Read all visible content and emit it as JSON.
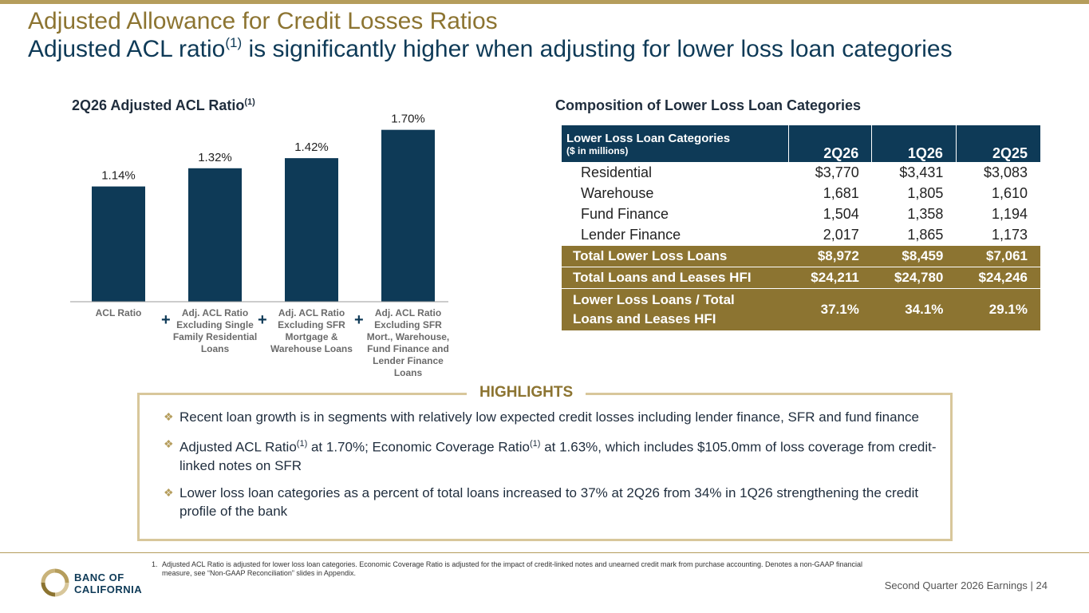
{
  "header": {
    "title": "Adjusted Allowance for Credit Losses Ratios",
    "subtitle_pre": "Adjusted ACL ratio",
    "subtitle_sup": "(1)",
    "subtitle_post": " is significantly higher when adjusting for lower loss loan categories"
  },
  "chart_data": {
    "type": "bar",
    "title": "2Q26 Adjusted ACL Ratio",
    "title_sup": "(1)",
    "categories": [
      "ACL Ratio",
      "Adj. ACL Ratio Excluding Single Family Residential Loans",
      "Adj. ACL Ratio Excluding SFR Mortgage & Warehouse Loans",
      "Adj. ACL Ratio Excluding SFR Mort., Warehouse, Fund Finance and Lender Finance Loans"
    ],
    "values": [
      1.14,
      1.32,
      1.42,
      1.7
    ],
    "value_labels": [
      "1.14%",
      "1.32%",
      "1.42%",
      "1.70%"
    ],
    "ylim": [
      0,
      1.8
    ],
    "grid": false,
    "bar_color": "#0e3a57",
    "separator": "+"
  },
  "table": {
    "title": "Composition of Lower Loss Loan Categories",
    "header_label": "Lower Loss Loan Categories",
    "header_sub": "($ in millions)",
    "columns": [
      "2Q26",
      "1Q26",
      "2Q25"
    ],
    "rows": [
      {
        "label": "Residential",
        "values": [
          "$3,770",
          "$3,431",
          "$3,083"
        ]
      },
      {
        "label": "Warehouse",
        "values": [
          "1,681",
          "1,805",
          "1,610"
        ]
      },
      {
        "label": "Fund Finance",
        "values": [
          "1,504",
          "1,358",
          "1,194"
        ]
      },
      {
        "label": "Lender Finance",
        "values": [
          "2,017",
          "1,865",
          "1,173"
        ]
      }
    ],
    "totals": [
      {
        "label": "Total Lower Loss Loans",
        "values": [
          "$8,972",
          "$8,459",
          "$7,061"
        ]
      },
      {
        "label": "Total Loans and Leases HFI",
        "values": [
          "$24,211",
          "$24,780",
          "$24,246"
        ]
      },
      {
        "label_line1": "Lower Loss Loans  / Total",
        "label_line2": "Loans and Leases HFI",
        "values": [
          "37.1%",
          "34.1%",
          "29.1%"
        ]
      }
    ]
  },
  "highlights": {
    "title": "HIGHLIGHTS",
    "b1": "Recent loan growth is in segments with relatively low expected credit losses including lender finance, SFR and fund finance",
    "b2_a": "Adjusted ACL Ratio",
    "b2_sup1": "(1)",
    "b2_b": " at 1.70%; Economic Coverage Ratio",
    "b2_sup2": "(1)",
    "b2_c": " at 1.63%, which includes $105.0mm of loss coverage from credit-linked notes on SFR",
    "b3": "Lower loss loan categories as a percent of total loans increased to 37% at 2Q26 from 34% in 1Q26 strengthening the credit profile of the bank"
  },
  "footer": {
    "footnote_num": "1.",
    "footnote_text": "Adjusted ACL Ratio is adjusted for lower loss loan categories. Economic Coverage Ratio is adjusted for the impact of credit-linked notes and unearned credit mark from purchase accounting. Denotes a non-GAAP financial measure, see “Non-GAAP Reconciliation” slides in Appendix.",
    "brand_line1": "BANC OF",
    "brand_line2": "CALIFORNIA",
    "page_label": "Second Quarter 2026 Earnings |  24"
  },
  "colors": {
    "navy": "#0e3a57",
    "gold": "#8c7431",
    "light_gold": "#d8c79b"
  }
}
